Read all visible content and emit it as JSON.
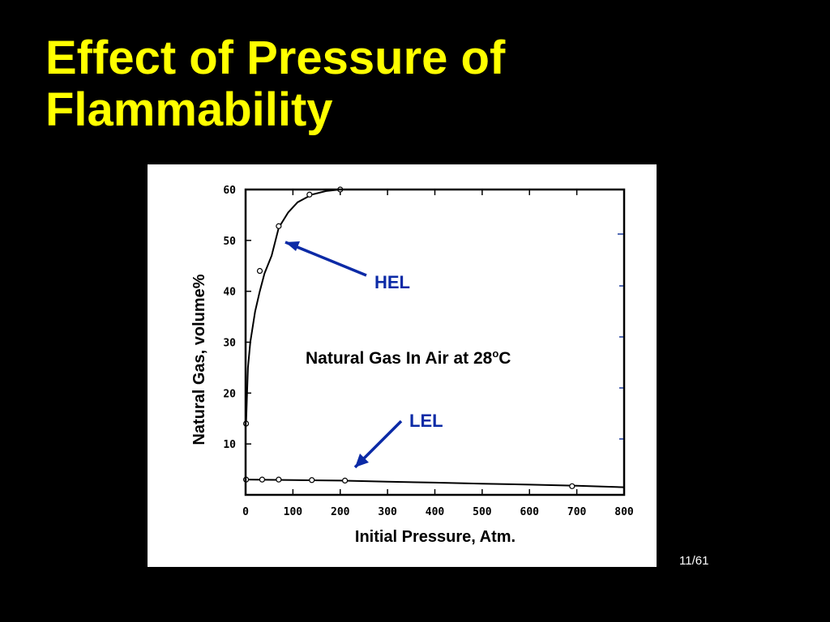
{
  "slide": {
    "title_line1": "Effect of Pressure of",
    "title_line2": "Flammability",
    "page_number": "11/61",
    "title_color": "#ffff00",
    "background": "#000000"
  },
  "chart_data": {
    "type": "line",
    "title": "Natural Gas In Air at 28°C",
    "title_main": "Natural Gas In Air at 28",
    "title_sup": "o",
    "title_tail": "C",
    "xlabel": "Initial Pressure, Atm.",
    "ylabel": "Natural Gas, volume%",
    "xlim": [
      0,
      800
    ],
    "ylim": [
      0,
      60
    ],
    "x_ticks": [
      0,
      100,
      200,
      300,
      400,
      500,
      600,
      700,
      800
    ],
    "y_ticks": [
      10,
      20,
      30,
      40,
      50,
      60
    ],
    "grid": false,
    "series": [
      {
        "name": "HEL",
        "color": "#0b2aa6",
        "curve": [
          [
            1,
            14
          ],
          [
            3,
            20
          ],
          [
            5,
            25
          ],
          [
            10,
            30
          ],
          [
            20,
            36
          ],
          [
            30,
            40
          ],
          [
            40,
            43.5
          ],
          [
            55,
            47
          ],
          [
            70,
            52.5
          ],
          [
            90,
            55.5
          ],
          [
            110,
            57.5
          ],
          [
            140,
            59
          ],
          [
            170,
            59.7
          ],
          [
            200,
            60
          ],
          [
            800,
            60
          ]
        ],
        "markers": [
          [
            1,
            14
          ],
          [
            30,
            44
          ],
          [
            70,
            52.8
          ],
          [
            135,
            59
          ],
          [
            200,
            60
          ]
        ]
      },
      {
        "name": "LEL",
        "color": "#0b2aa6",
        "curve": [
          [
            0,
            3
          ],
          [
            100,
            2.9
          ],
          [
            200,
            2.8
          ],
          [
            300,
            2.6
          ],
          [
            400,
            2.4
          ],
          [
            500,
            2.2
          ],
          [
            600,
            2.0
          ],
          [
            700,
            1.8
          ],
          [
            800,
            1.5
          ]
        ],
        "markers": [
          [
            1,
            3
          ],
          [
            35,
            3
          ],
          [
            70,
            3
          ],
          [
            140,
            2.9
          ],
          [
            210,
            2.8
          ],
          [
            690,
            1.7
          ]
        ]
      }
    ]
  }
}
